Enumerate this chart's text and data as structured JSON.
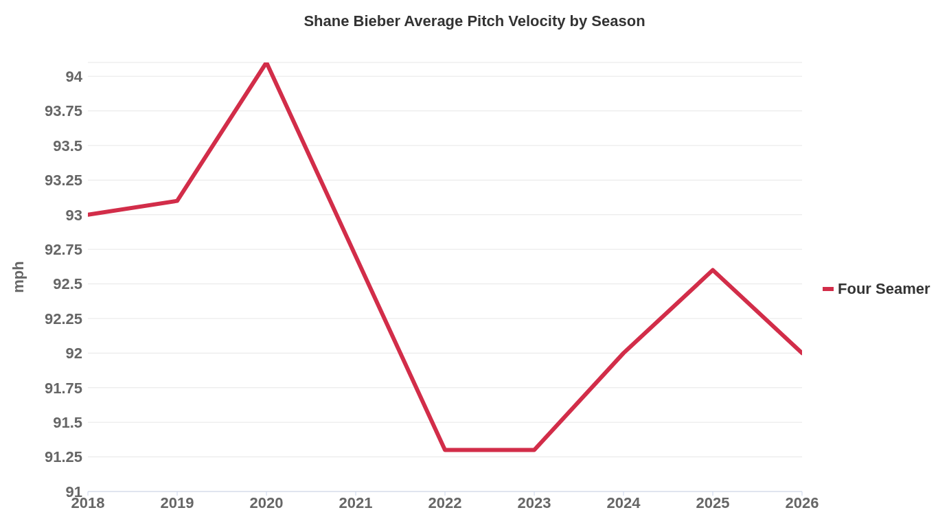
{
  "chart_data": {
    "type": "line",
    "title": "Shane Bieber Average Pitch Velocity by Season",
    "ylabel": "mph",
    "x": [
      2018,
      2019,
      2020,
      2021,
      2022,
      2023,
      2024,
      2025,
      2026
    ],
    "series": [
      {
        "name": "Four Seamer",
        "color": "#d22d49",
        "values": [
          93.0,
          93.1,
          94.1,
          92.7,
          91.3,
          91.3,
          92.0,
          92.6,
          92.0
        ]
      }
    ],
    "xlim": [
      2018,
      2026
    ],
    "xticks": [
      2018,
      2019,
      2020,
      2021,
      2022,
      2023,
      2024,
      2025,
      2026
    ],
    "ylim": [
      91,
      94.1
    ],
    "yticks": [
      91,
      91.25,
      91.5,
      91.75,
      92,
      92.25,
      92.5,
      92.75,
      93,
      93.25,
      93.5,
      93.75,
      94
    ],
    "grid": "y",
    "legend": "right",
    "marker": "none",
    "line_style": "solid"
  }
}
